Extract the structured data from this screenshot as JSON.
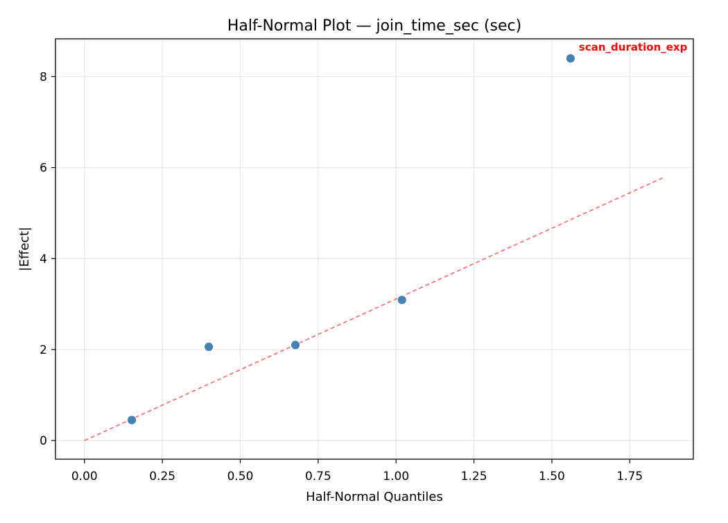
{
  "chart_data": {
    "type": "scatter",
    "title": "Half-Normal Plot — join_time_sec (sec)",
    "xlabel": "Half-Normal Quantiles",
    "ylabel": "|Effect|",
    "xlim": [
      -0.093,
      1.954
    ],
    "ylim": [
      -0.41,
      8.83
    ],
    "xticks": [
      0.0,
      0.25,
      0.5,
      0.75,
      1.0,
      1.25,
      1.5,
      1.75
    ],
    "xtick_labels": [
      "0.00",
      "0.25",
      "0.50",
      "0.75",
      "1.00",
      "1.25",
      "1.50",
      "1.75"
    ],
    "yticks": [
      0,
      2,
      4,
      6,
      8
    ],
    "ytick_labels": [
      "0",
      "2",
      "4",
      "6",
      "8"
    ],
    "grid": true,
    "points": [
      {
        "x": 0.152,
        "y": 0.45
      },
      {
        "x": 0.399,
        "y": 2.06
      },
      {
        "x": 0.677,
        "y": 2.1
      },
      {
        "x": 1.019,
        "y": 3.09
      },
      {
        "x": 1.56,
        "y": 8.4,
        "label": "scan_duration_exp"
      }
    ],
    "reference_line": {
      "x": [
        0.0,
        1.861
      ],
      "y": [
        0.0,
        5.79
      ],
      "style": "dashed"
    },
    "colors": {
      "points": "#4682b4",
      "reference_line": "#ff6666",
      "annotation": "#ff0000",
      "grid": "#e6e6e6"
    }
  }
}
